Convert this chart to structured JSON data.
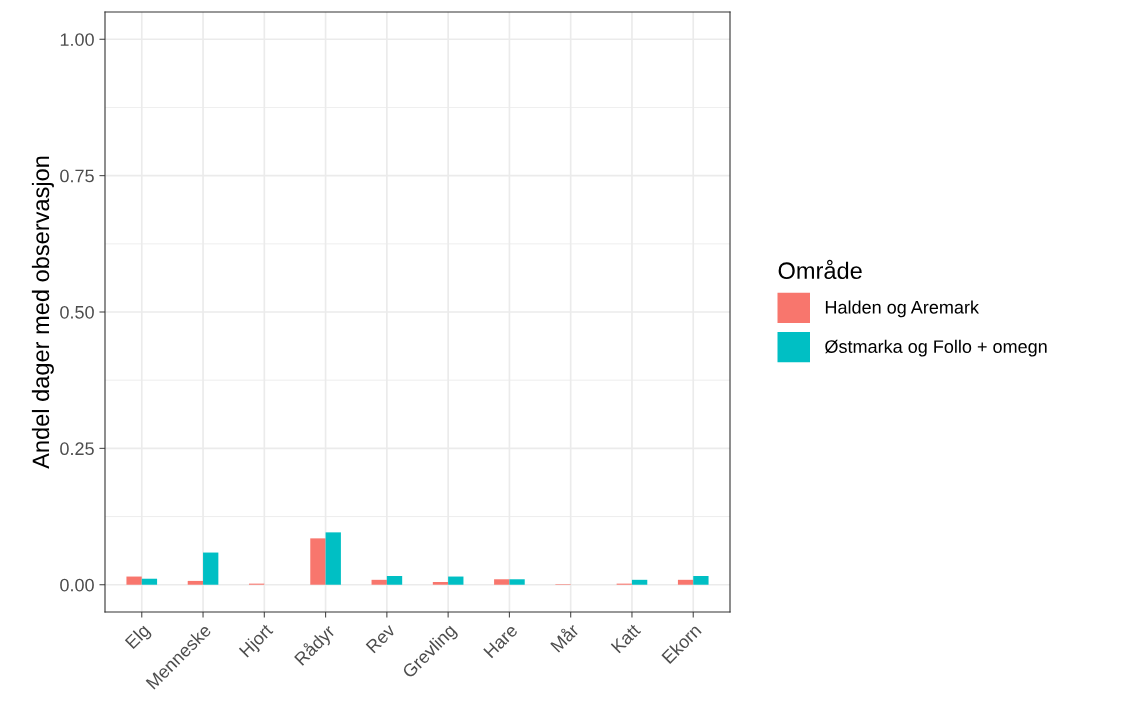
{
  "chart_data": {
    "type": "bar",
    "ylabel": "Andel dager med observasjon",
    "legend_title": "Område",
    "legend": "right",
    "categories": [
      "Elg",
      "Menneske",
      "Hjort",
      "Rådyr",
      "Rev",
      "Grevling",
      "Hare",
      "Mår",
      "Katt",
      "Ekorn"
    ],
    "series": [
      {
        "name": "Halden og Aremark",
        "color": "#f8766d",
        "values": [
          0.015,
          0.007,
          0.002,
          0.085,
          0.009,
          0.005,
          0.01,
          0.001,
          0.002,
          0.009
        ]
      },
      {
        "name": "Østmarka og Follo + omegn",
        "color": "#00bfc4",
        "values": [
          0.011,
          0.059,
          0,
          0.096,
          0.016,
          0.015,
          0.01,
          0,
          0.009,
          0.016
        ]
      }
    ],
    "ylim": [
      -0.05,
      1.05
    ],
    "yticks": [
      {
        "value": 0,
        "label": "0.00"
      },
      {
        "value": 0.25,
        "label": "0.25"
      },
      {
        "value": 0.5,
        "label": "0.50"
      },
      {
        "value": 0.75,
        "label": "0.75"
      },
      {
        "value": 1,
        "label": "1.00"
      }
    ],
    "grid": true
  }
}
